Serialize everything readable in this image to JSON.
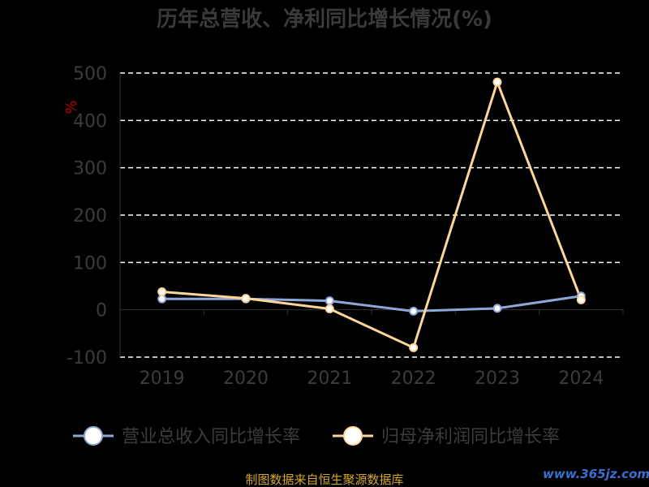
{
  "chart_data": {
    "type": "line",
    "title": "历年总营收、净利同比增长情况(%)",
    "ylabel": "%",
    "categories": [
      "2019",
      "2020",
      "2021",
      "2022",
      "2023",
      "2024"
    ],
    "ylim": [
      -100,
      500
    ],
    "yticks": [
      500,
      400,
      300,
      200,
      100,
      0,
      -100
    ],
    "grid": true,
    "legend_position": "bottom",
    "series": [
      {
        "name": "营业总收入同比增长率",
        "color": "#8ea7d6",
        "values": [
          23,
          23,
          19,
          -3,
          3,
          29
        ]
      },
      {
        "name": "归母净利润同比增长率",
        "color": "#ffd699",
        "values": [
          38,
          24,
          2,
          -80,
          481,
          21
        ]
      }
    ]
  },
  "footer": {
    "source": "制图数据来自恒生聚源数据库",
    "watermark": "www.365jz.com"
  }
}
